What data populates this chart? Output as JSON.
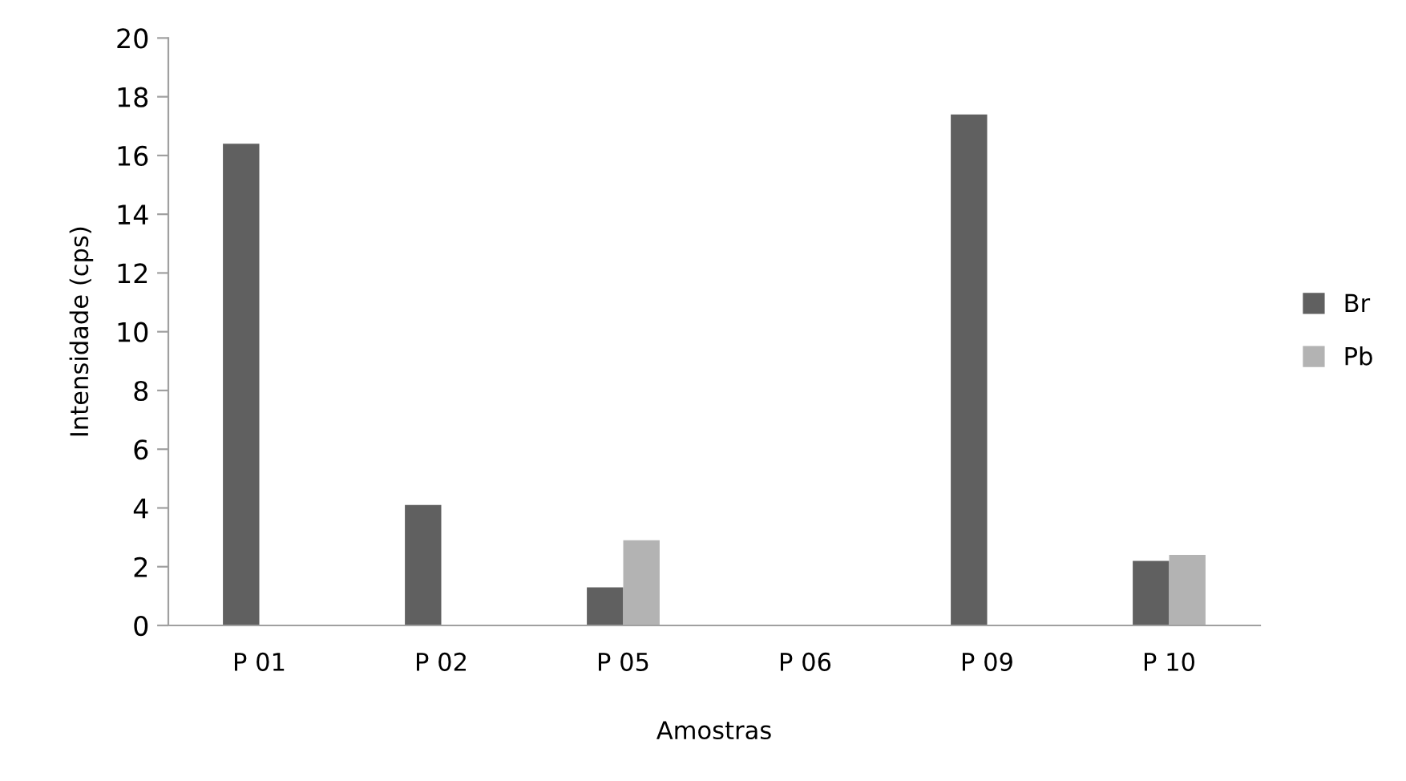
{
  "chart_data": {
    "type": "bar",
    "xlabel": "Amostras",
    "ylabel": "Intensidade (cps)",
    "categories": [
      "P 01",
      "P 02",
      "P 05",
      "P 06",
      "P 09",
      "P 10"
    ],
    "series": [
      {
        "name": "Br",
        "color": "#606060",
        "values": [
          16.4,
          4.1,
          1.3,
          0,
          17.4,
          2.2
        ]
      },
      {
        "name": "Pb",
        "color": "#b3b3b3",
        "values": [
          0,
          0,
          2.9,
          0,
          0,
          2.4
        ]
      }
    ],
    "ylim": [
      0,
      20
    ],
    "yticks": [
      0,
      2,
      4,
      6,
      8,
      10,
      12,
      14,
      16,
      18,
      20
    ],
    "grid": false,
    "legend": "right"
  }
}
